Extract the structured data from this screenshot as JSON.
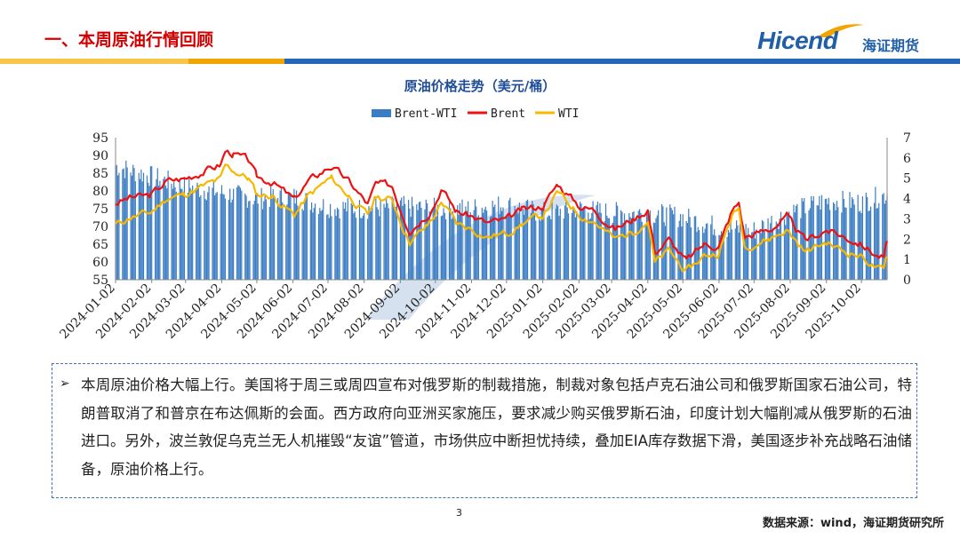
{
  "header": {
    "title": "一、本周原油行情回顾",
    "logo_text": "Hicend",
    "logo_company": "海证期货"
  },
  "colors": {
    "title_red": "#d40000",
    "brand_blue": "#1f5fa8",
    "strip_yellow": "#f7c548",
    "strip_orange": "#f0a500",
    "strip_blue": "#2369b9",
    "bar_blue": "#3b7dc4",
    "brent_red": "#ee1111",
    "wti_yellow": "#f6b800"
  },
  "chart_data": {
    "type": "bar+line",
    "title": "原油价格走势（美元/桶）",
    "legend": [
      {
        "name": "Brent-WTI",
        "kind": "bar",
        "color": "#3b7dc4"
      },
      {
        "name": "Brent",
        "kind": "line",
        "color": "#ee1111"
      },
      {
        "name": "WTI",
        "kind": "line",
        "color": "#f6b800"
      }
    ],
    "legend_position": "top-center",
    "x_ticks": [
      "2024-01-02",
      "2024-02-02",
      "2024-03-02",
      "2024-04-02",
      "2024-05-02",
      "2024-06-02",
      "2024-07-02",
      "2024-08-02",
      "2024-09-02",
      "2024-10-02",
      "2024-11-02",
      "2024-12-02",
      "2025-01-02",
      "2025-02-02",
      "2025-03-02",
      "2025-04-02",
      "2025-05-02",
      "2025-06-02",
      "2025-07-02",
      "2025-08-02",
      "2025-09-02",
      "2025-10-02"
    ],
    "x_range": [
      "2024-01-02",
      "2025-10-24"
    ],
    "y_left": {
      "min": 55,
      "max": 95,
      "step": 5,
      "ticks": [
        "95",
        "90",
        "85",
        "80",
        "75",
        "70",
        "65",
        "60",
        "55"
      ]
    },
    "y_right": {
      "min": 0,
      "max": 7,
      "step": 1,
      "ticks": [
        "7",
        "6",
        "5",
        "4",
        "3",
        "2",
        "1",
        "0"
      ]
    },
    "brent": [
      [
        "2024-01-02",
        76.5
      ],
      [
        "2024-01-15",
        78.2
      ],
      [
        "2024-02-01",
        78.7
      ],
      [
        "2024-02-15",
        82.8
      ],
      [
        "2024-03-01",
        83.5
      ],
      [
        "2024-03-15",
        85.3
      ],
      [
        "2024-04-01",
        87.4
      ],
      [
        "2024-04-05",
        91.2
      ],
      [
        "2024-04-12",
        90.5
      ],
      [
        "2024-04-25",
        88.5
      ],
      [
        "2024-05-02",
        83.7
      ],
      [
        "2024-05-15",
        82.7
      ],
      [
        "2024-06-03",
        77.5
      ],
      [
        "2024-06-15",
        82.6
      ],
      [
        "2024-07-02",
        86.6
      ],
      [
        "2024-07-05",
        87.0
      ],
      [
        "2024-07-20",
        82.6
      ],
      [
        "2024-08-05",
        76.3
      ],
      [
        "2024-08-12",
        81.9
      ],
      [
        "2024-08-26",
        81.4
      ],
      [
        "2024-09-05",
        72.7
      ],
      [
        "2024-09-10",
        69.2
      ],
      [
        "2024-09-25",
        73.5
      ],
      [
        "2024-10-03",
        77.6
      ],
      [
        "2024-10-07",
        80.9
      ],
      [
        "2024-10-20",
        74.3
      ],
      [
        "2024-11-01",
        73.1
      ],
      [
        "2024-11-15",
        71.0
      ],
      [
        "2024-12-02",
        71.8
      ],
      [
        "2024-12-15",
        74.5
      ],
      [
        "2025-01-02",
        75.9
      ],
      [
        "2025-01-15",
        82.0
      ],
      [
        "2025-01-20",
        80.2
      ],
      [
        "2025-02-03",
        75.7
      ],
      [
        "2025-02-15",
        74.7
      ],
      [
        "2025-03-05",
        69.3
      ],
      [
        "2025-03-20",
        72.0
      ],
      [
        "2025-04-02",
        74.9
      ],
      [
        "2025-04-08",
        62.8
      ],
      [
        "2025-04-20",
        66.3
      ],
      [
        "2025-05-05",
        60.2
      ],
      [
        "2025-05-20",
        64.9
      ],
      [
        "2025-06-02",
        64.6
      ],
      [
        "2025-06-13",
        74.2
      ],
      [
        "2025-06-19",
        76.7
      ],
      [
        "2025-06-24",
        67.1
      ],
      [
        "2025-07-15",
        69.2
      ],
      [
        "2025-07-30",
        72.5
      ],
      [
        "2025-08-15",
        65.9
      ],
      [
        "2025-09-02",
        69.1
      ],
      [
        "2025-09-15",
        67.4
      ],
      [
        "2025-10-01",
        65.3
      ],
      [
        "2025-10-15",
        61.9
      ],
      [
        "2025-10-21",
        61.3
      ],
      [
        "2025-10-24",
        65.9
      ]
    ],
    "wti": [
      [
        "2024-01-02",
        70.4
      ],
      [
        "2024-01-15",
        72.6
      ],
      [
        "2024-02-01",
        73.8
      ],
      [
        "2024-02-15",
        78.0
      ],
      [
        "2024-03-01",
        79.0
      ],
      [
        "2024-03-15",
        81.0
      ],
      [
        "2024-04-01",
        83.2
      ],
      [
        "2024-04-05",
        86.9
      ],
      [
        "2024-04-12",
        85.7
      ],
      [
        "2024-04-25",
        83.5
      ],
      [
        "2024-05-02",
        79.0
      ],
      [
        "2024-05-15",
        78.6
      ],
      [
        "2024-06-03",
        73.2
      ],
      [
        "2024-06-15",
        78.5
      ],
      [
        "2024-07-02",
        83.0
      ],
      [
        "2024-07-05",
        83.4
      ],
      [
        "2024-07-20",
        78.6
      ],
      [
        "2024-08-05",
        72.9
      ],
      [
        "2024-08-12",
        78.4
      ],
      [
        "2024-08-26",
        77.4
      ],
      [
        "2024-09-05",
        69.2
      ],
      [
        "2024-09-10",
        65.8
      ],
      [
        "2024-09-25",
        70.0
      ],
      [
        "2024-10-03",
        73.9
      ],
      [
        "2024-10-07",
        77.2
      ],
      [
        "2024-10-20",
        70.7
      ],
      [
        "2024-11-01",
        69.5
      ],
      [
        "2024-11-15",
        67.0
      ],
      [
        "2024-12-02",
        68.1
      ],
      [
        "2024-12-15",
        70.7
      ],
      [
        "2025-01-02",
        73.1
      ],
      [
        "2025-01-15",
        79.5
      ],
      [
        "2025-01-20",
        77.8
      ],
      [
        "2025-02-03",
        73.2
      ],
      [
        "2025-02-15",
        71.4
      ],
      [
        "2025-03-05",
        66.3
      ],
      [
        "2025-03-20",
        68.5
      ],
      [
        "2025-04-02",
        71.7
      ],
      [
        "2025-04-08",
        59.6
      ],
      [
        "2025-04-20",
        63.1
      ],
      [
        "2025-05-05",
        57.2
      ],
      [
        "2025-05-20",
        61.7
      ],
      [
        "2025-06-02",
        62.5
      ],
      [
        "2025-06-13",
        72.9
      ],
      [
        "2025-06-19",
        74.9
      ],
      [
        "2025-06-24",
        64.4
      ],
      [
        "2025-07-15",
        66.5
      ],
      [
        "2025-07-30",
        69.0
      ],
      [
        "2025-08-15",
        62.8
      ],
      [
        "2025-09-02",
        65.6
      ],
      [
        "2025-09-15",
        63.3
      ],
      [
        "2025-10-01",
        61.8
      ],
      [
        "2025-10-15",
        58.3
      ],
      [
        "2025-10-21",
        57.2
      ],
      [
        "2025-10-24",
        61.5
      ]
    ],
    "spread_typical": [
      [
        "2024-01-02",
        5.6
      ],
      [
        "2024-02-01",
        5.1
      ],
      [
        "2024-03-01",
        4.6
      ],
      [
        "2024-04-01",
        4.3
      ],
      [
        "2024-05-01",
        4.0
      ],
      [
        "2024-06-01",
        4.1
      ],
      [
        "2024-07-01",
        3.6
      ],
      [
        "2024-08-01",
        3.5
      ],
      [
        "2024-09-01",
        3.6
      ],
      [
        "2024-10-01",
        3.5
      ],
      [
        "2024-11-01",
        3.5
      ],
      [
        "2024-12-01",
        3.7
      ],
      [
        "2025-01-01",
        3.3
      ],
      [
        "2025-02-01",
        3.5
      ],
      [
        "2025-03-01",
        3.3
      ],
      [
        "2025-04-01",
        3.3
      ],
      [
        "2025-05-01",
        3.1
      ],
      [
        "2025-06-01",
        2.6
      ],
      [
        "2025-07-01",
        2.4
      ],
      [
        "2025-08-01",
        3.3
      ],
      [
        "2025-09-01",
        3.9
      ],
      [
        "2025-10-01",
        3.8
      ],
      [
        "2025-10-24",
        4.2
      ]
    ]
  },
  "summary": {
    "bullet": "➢",
    "text": "本周原油价格大幅上行。美国将于周三或周四宣布对俄罗斯的制裁措施，制裁对象包括卢克石油公司和俄罗斯国家石油公司，特朗普取消了和普京在布达佩斯的会面。西方政府向亚洲买家施压，要求减少购买俄罗斯石油，印度计划大幅削减从俄罗斯的石油进口。另外，波兰敦促乌克兰无人机摧毁“友谊”管道，市场供应中断担忧持续，叠加EIA库存数据下滑，美国逐步补充战略石油储备，原油价格上行。"
  },
  "footer": {
    "page_number": "3",
    "source": "数据来源：wind，海证期货研究所"
  }
}
